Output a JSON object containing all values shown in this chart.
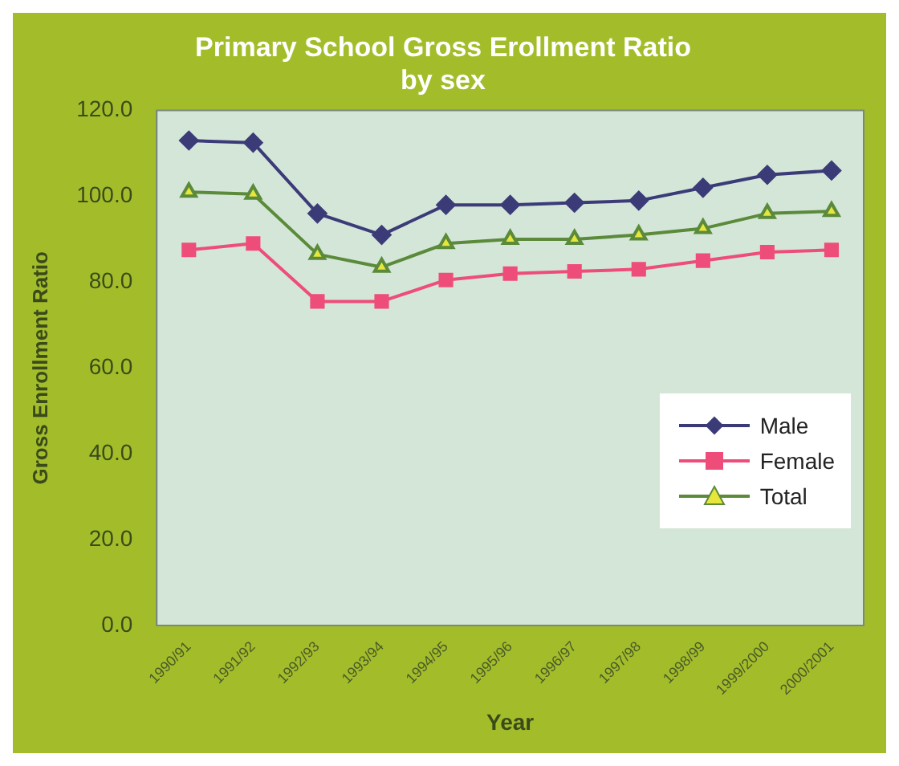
{
  "chart_data": {
    "type": "line",
    "title": "Primary School Gross Erollment Ratio by sex",
    "xlabel": "Year",
    "ylabel": "Gross Enrollment Ratio",
    "categories": [
      "1990/91",
      "1991/92",
      "1992/93",
      "1993/94",
      "1994/95",
      "1995/96",
      "1996/97",
      "1997/98",
      "1998/99",
      "1999/2000",
      "2000/2001"
    ],
    "series": [
      {
        "name": "Male",
        "color": "#3b3b78",
        "marker": "diamond",
        "values": [
          113,
          112.5,
          96,
          91,
          98,
          98,
          98.5,
          99,
          102,
          105,
          106
        ]
      },
      {
        "name": "Female",
        "color": "#ee4d7a",
        "marker": "square",
        "values": [
          87.5,
          89,
          75.5,
          75.5,
          80.5,
          82,
          82.5,
          83,
          85,
          87,
          87.5
        ]
      },
      {
        "name": "Total",
        "color": "#5a8a3a",
        "marker": "triangle",
        "values": [
          101,
          100.5,
          86.5,
          83.5,
          89,
          90,
          90,
          91,
          92.5,
          96,
          96.5
        ]
      }
    ],
    "ylim": [
      0,
      120
    ],
    "yticks": [
      {
        "value": 0,
        "label": "0.0"
      },
      {
        "value": 20,
        "label": "20.0"
      },
      {
        "value": 40,
        "label": "40.0"
      },
      {
        "value": 60,
        "label": "60.0"
      },
      {
        "value": 80,
        "label": "80.0"
      },
      {
        "value": 100,
        "label": "100.0"
      },
      {
        "value": 120,
        "label": "120.0"
      }
    ],
    "grid": false,
    "legend": "bottom right",
    "line_style": "solid"
  }
}
